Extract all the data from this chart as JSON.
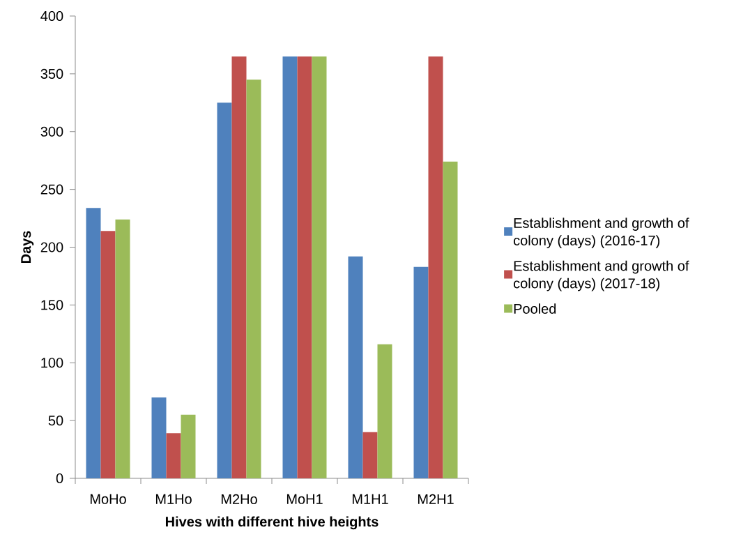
{
  "chart_data": {
    "type": "bar",
    "xlabel": "Hives with different hive heights",
    "ylabel": "Days",
    "categories": [
      "MoHo",
      "M1Ho",
      "M2Ho",
      "MoH1",
      "M1H1",
      "M2H1"
    ],
    "series": [
      {
        "name": "Establishment and growth of colony (days)  (2016-17)",
        "color": "#4f81bd",
        "values": [
          234,
          70,
          325,
          365,
          192,
          183
        ]
      },
      {
        "name": "Establishment and growth of colony (days)  (2017-18)",
        "color": "#c0504d",
        "values": [
          214,
          39,
          365,
          365,
          40,
          365
        ]
      },
      {
        "name": "Pooled",
        "color": "#9bbb59",
        "values": [
          224,
          55,
          345,
          365,
          116,
          274
        ]
      }
    ],
    "ylim": [
      0,
      400
    ],
    "yticks": [
      0,
      50,
      100,
      150,
      200,
      250,
      300,
      350,
      400
    ],
    "legend": "right"
  }
}
